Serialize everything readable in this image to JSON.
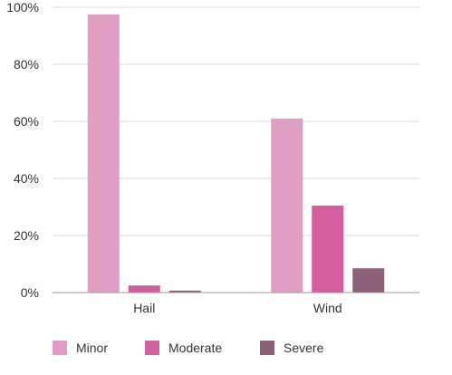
{
  "chart_data": {
    "type": "bar",
    "categories": [
      "Hail",
      "Wind"
    ],
    "series": [
      {
        "name": "Minor",
        "values": [
          97.5,
          61
        ],
        "color": "#e09ec2"
      },
      {
        "name": "Moderate",
        "values": [
          2.5,
          30.5
        ],
        "color": "#d35d9e"
      },
      {
        "name": "Severe",
        "values": [
          0.7,
          8.5
        ],
        "color": "#8c6078"
      }
    ],
    "title": "",
    "xlabel": "",
    "ylabel": "",
    "ylim": [
      0,
      100
    ],
    "yticks": [
      "0%",
      "20%",
      "40%",
      "60%",
      "80%",
      "100%"
    ],
    "grid": true,
    "legend": "bottom-left"
  }
}
